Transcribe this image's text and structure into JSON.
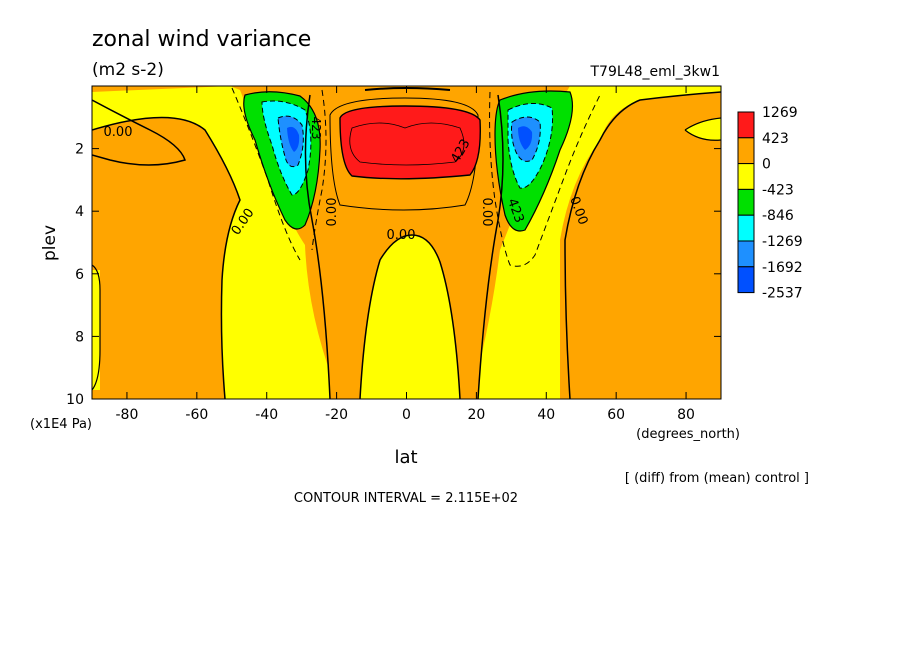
{
  "chart_data": {
    "type": "heatmap",
    "title": "zonal wind variance",
    "units": "(m2 s-2)",
    "run_name": "T79L48_eml_3kw1",
    "xlabel": "lat",
    "xunits": "(degrees_north)",
    "ylabel": "plev",
    "yunits": "(x1E4 Pa)",
    "xlim": [
      -90,
      90
    ],
    "ylim": [
      10,
      0
    ],
    "xticks": [
      -80,
      -60,
      -40,
      -20,
      0,
      20,
      40,
      60,
      80
    ],
    "yticks": [
      2,
      4,
      6,
      8,
      10
    ],
    "note": "[ (diff) from (mean) control ]",
    "contour_interval": "CONTOUR INTERVAL = 2.115E+02",
    "colorbar": {
      "labels": [
        "1269",
        "423",
        "0",
        "-423",
        "-846",
        "-1269",
        "-1692",
        "-2537"
      ],
      "colors": [
        "#ff1a1a",
        "#ffa500",
        "#ffff00",
        "#00e000",
        "#00ffff",
        "#1e90ff",
        "#0050ff"
      ]
    },
    "contour_labels": [
      {
        "text": "0.00",
        "lat": -82,
        "plev": 1.4
      },
      {
        "text": "0.00",
        "lat": -46,
        "plev": 4.3
      },
      {
        "text": "0.00",
        "lat": -20,
        "plev": 4.0
      },
      {
        "text": "0.00",
        "lat": -2,
        "plev": 4.7
      },
      {
        "text": "0.00",
        "lat": 22,
        "plev": 4.0
      },
      {
        "text": "0.00",
        "lat": 48,
        "plev": 4.0
      },
      {
        "text": "423",
        "lat": 16,
        "plev": 2.0
      },
      {
        "text": "423",
        "lat": 30,
        "plev": 4.0
      },
      {
        "text": "423",
        "lat": -28,
        "plev": 1.3
      }
    ]
  }
}
